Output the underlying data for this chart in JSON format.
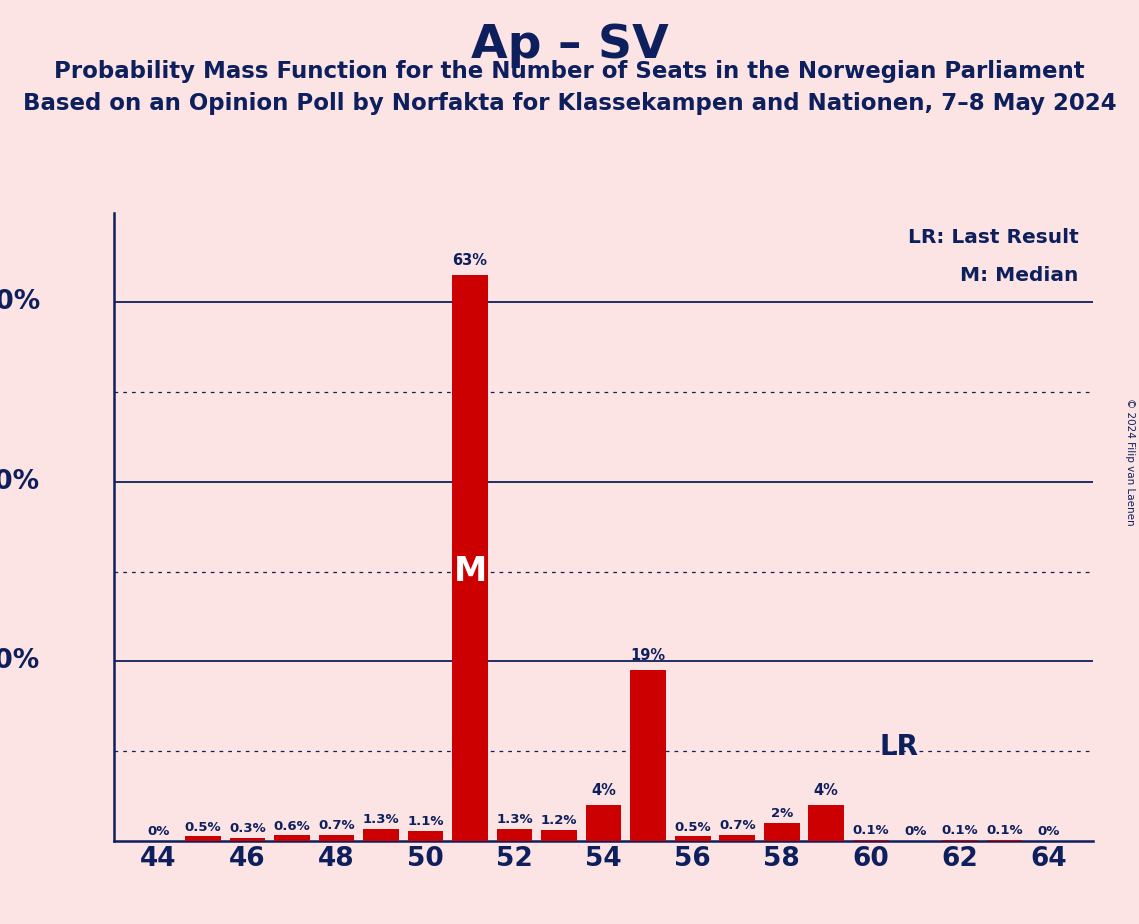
{
  "title": "Ap – SV",
  "subtitle1": "Probability Mass Function for the Number of Seats in the Norwegian Parliament",
  "subtitle2": "Based on an Opinion Poll by Norfakta for Klassekampen and Nationen, 7–8 May 2024",
  "copyright": "© 2024 Filip van Laenen",
  "seats": [
    44,
    45,
    46,
    47,
    48,
    49,
    50,
    51,
    52,
    53,
    54,
    55,
    56,
    57,
    58,
    59,
    60,
    61,
    62,
    63,
    64
  ],
  "probabilities": [
    0.0,
    0.5,
    0.3,
    0.6,
    0.7,
    1.3,
    1.1,
    63.0,
    1.3,
    1.2,
    4.0,
    19.0,
    0.5,
    0.7,
    2.0,
    4.0,
    0.1,
    0.0,
    0.1,
    0.1,
    0.0
  ],
  "prob_labels": [
    "0%",
    "0.5%",
    "0.3%",
    "0.6%",
    "0.7%",
    "1.3%",
    "1.1%",
    "63%",
    "1.3%",
    "1.2%",
    "4%",
    "19%",
    "0.5%",
    "0.7%",
    "2%",
    "4%",
    "0.1%",
    "0%",
    "0.1%",
    "0.1%",
    "0%"
  ],
  "bar_color": "#cc0000",
  "median_seat": 51,
  "lr_seat": 59,
  "background_color": "#fce4e4",
  "text_color": "#0d1f5c",
  "title_color": "#0d1f5c",
  "legend_lr": "LR: Last Result",
  "legend_m": "M: Median",
  "ylim": [
    0,
    70
  ],
  "xtick_values": [
    44,
    46,
    48,
    50,
    52,
    54,
    56,
    58,
    60,
    62,
    64
  ]
}
